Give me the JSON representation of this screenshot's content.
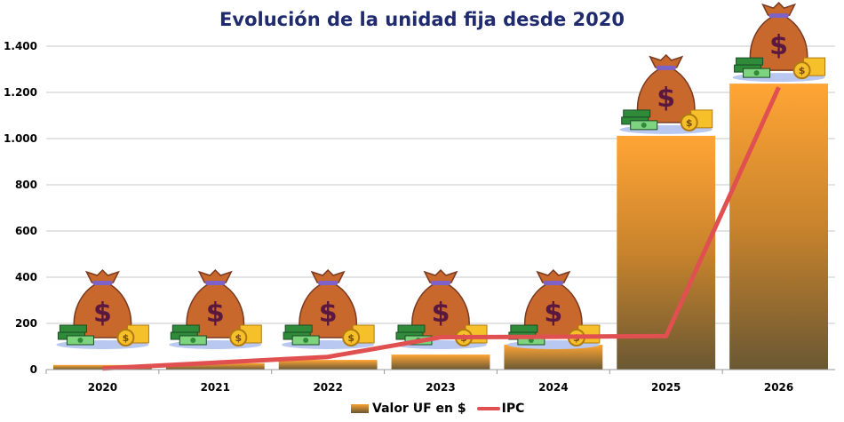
{
  "chart_data": {
    "type": "bar",
    "title": "Evolución de la unidad fija desde 2020",
    "categories": [
      "2020",
      "2021",
      "2022",
      "2023",
      "2024",
      "2025",
      "2026"
    ],
    "series": [
      {
        "name": "Valor UF en $",
        "type": "bar",
        "values": [
          20,
          28,
          42,
          65,
          108,
          1012,
          1238
        ],
        "color": "#f8a030"
      },
      {
        "name": "IPC",
        "type": "line",
        "values": [
          5,
          30,
          55,
          140,
          142,
          145,
          1222
        ],
        "color": "#e05050"
      }
    ],
    "ylim": [
      0,
      1400
    ],
    "yticks": [
      0,
      200,
      400,
      600,
      800,
      1000,
      1200,
      1400
    ],
    "ytick_labels": [
      "0",
      "200",
      "400",
      "600",
      "800",
      "1.000",
      "1.200",
      "1.400"
    ],
    "grid": true,
    "legend": "bottom",
    "xlabel": "",
    "ylabel": ""
  }
}
